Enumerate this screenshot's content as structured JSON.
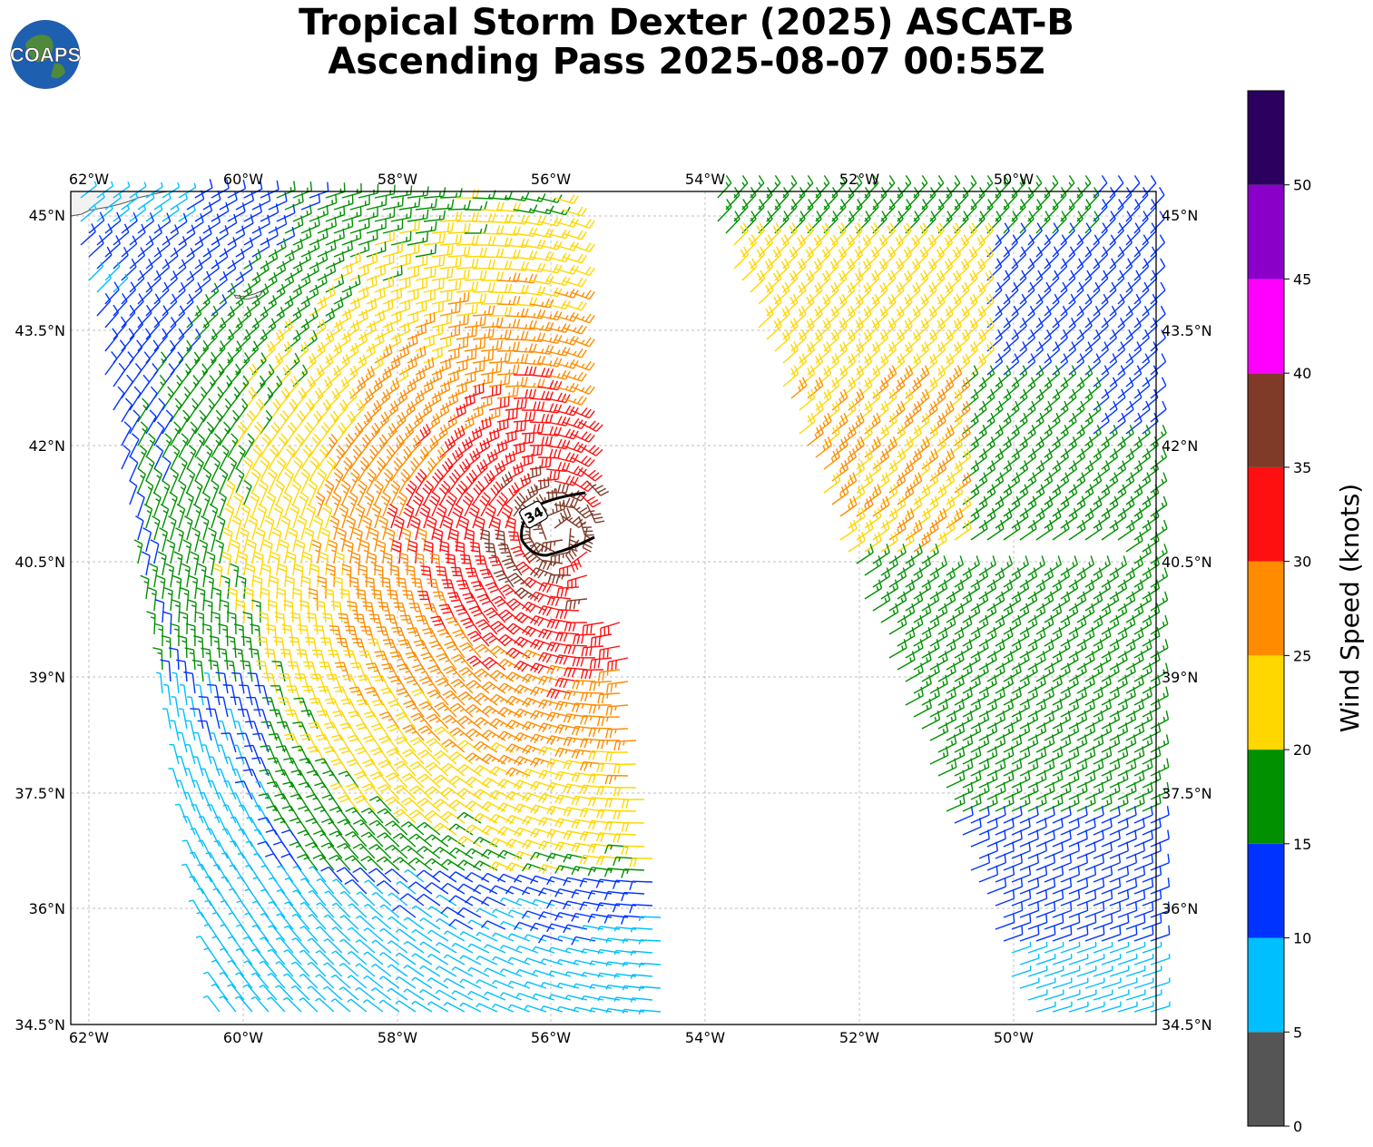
{
  "title": {
    "line1": "Tropical Storm Dexter (2025) ASCAT-B",
    "line2": "Ascending Pass 2025-08-07 00:55Z"
  },
  "logo": {
    "text": "COAPS"
  },
  "map": {
    "lon_ticks": [
      "62°W",
      "60°W",
      "58°W",
      "56°W",
      "54°W",
      "52°W",
      "50°W"
    ],
    "lat_ticks": [
      "45°N",
      "43.5°N",
      "42°N",
      "40.5°N",
      "39°N",
      "37.5°N",
      "36°N",
      "34.5°N"
    ],
    "wind_radius_label": "34",
    "gridlines": true
  },
  "colorbar": {
    "label": "Wind Speed (knots)",
    "ticks": [
      "0",
      "5",
      "10",
      "15",
      "20",
      "25",
      "30",
      "35",
      "40",
      "45",
      "50"
    ],
    "bins": [
      {
        "from": 0,
        "to": 5,
        "color": "#555555"
      },
      {
        "from": 5,
        "to": 10,
        "color": "#00BFFF"
      },
      {
        "from": 10,
        "to": 15,
        "color": "#0033FF"
      },
      {
        "from": 15,
        "to": 20,
        "color": "#009000"
      },
      {
        "from": 20,
        "to": 25,
        "color": "#FFD700"
      },
      {
        "from": 25,
        "to": 30,
        "color": "#FF8C00"
      },
      {
        "from": 30,
        "to": 35,
        "color": "#FF1010"
      },
      {
        "from": 35,
        "to": 40,
        "color": "#7F3A28"
      },
      {
        "from": 40,
        "to": 45,
        "color": "#FF00FF"
      },
      {
        "from": 45,
        "to": 50,
        "color": "#8A00C8"
      },
      {
        "from": 50,
        "to": 55,
        "color": "#2B005E"
      }
    ]
  }
}
